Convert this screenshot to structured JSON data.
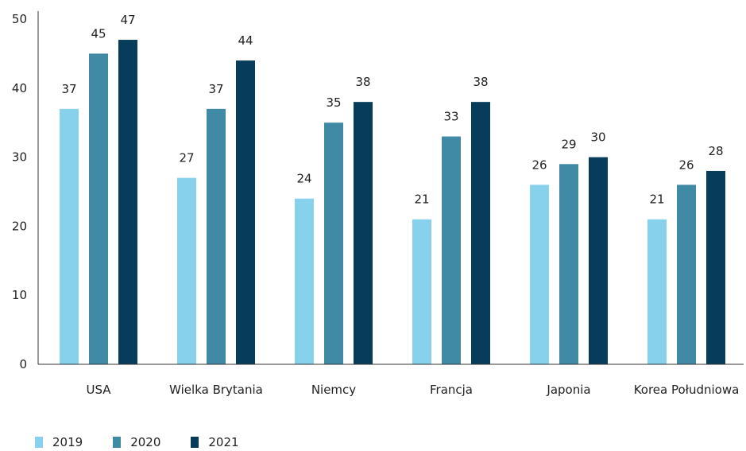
{
  "chart_data": {
    "type": "bar",
    "categories": [
      "USA",
      "Wielka Brytania",
      "Niemcy",
      "Francja",
      "Japonia",
      "Korea Południowa"
    ],
    "series": [
      {
        "name": "2019",
        "values": [
          37,
          27,
          24,
          21,
          26,
          21
        ],
        "color": "#87d1ec"
      },
      {
        "name": "2020",
        "values": [
          45,
          37,
          35,
          33,
          29,
          26
        ],
        "color": "#418aa6"
      },
      {
        "name": "2021",
        "values": [
          47,
          44,
          38,
          38,
          30,
          28
        ],
        "color": "#073d5a"
      }
    ],
    "title": "",
    "xlabel": "",
    "ylabel": "",
    "ylim": [
      0,
      50
    ],
    "yticks": [
      "0",
      "10",
      "20",
      "30",
      "40",
      "50"
    ],
    "grid": false,
    "legend_position": "bottom-left"
  }
}
